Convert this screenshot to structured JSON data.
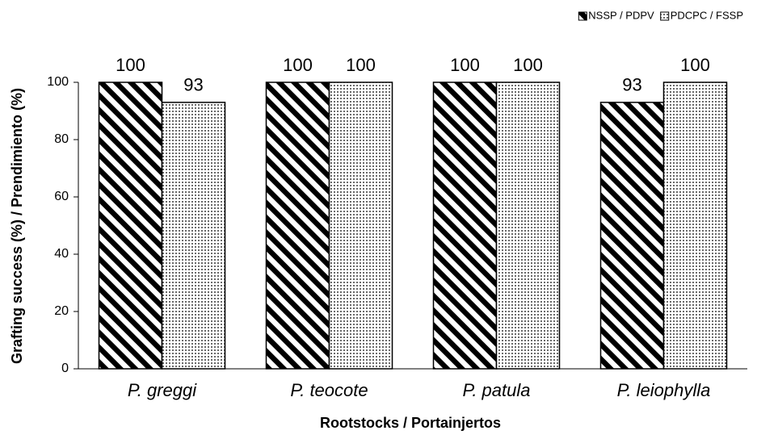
{
  "chart_data": {
    "type": "bar",
    "xlabel": "Rootstocks / Portainjertos",
    "ylabel": "Grafting success (%) / Prendimiento (%)",
    "categories": [
      "P. greggi",
      "P. teocote",
      "P. patula",
      "P. leiophylla"
    ],
    "series": [
      {
        "name": "NSSP / PDPV",
        "color": "#000000",
        "pattern": "diagonal",
        "values": [
          100,
          100,
          100,
          93
        ]
      },
      {
        "name": "PDCPC / FSSP",
        "color": "#000000",
        "pattern": "dots",
        "values": [
          93,
          100,
          100,
          100
        ]
      }
    ],
    "ylim": [
      0,
      100
    ],
    "yticks": [
      0,
      20,
      40,
      60,
      80,
      100
    ],
    "grid": false,
    "legend": "top right"
  }
}
